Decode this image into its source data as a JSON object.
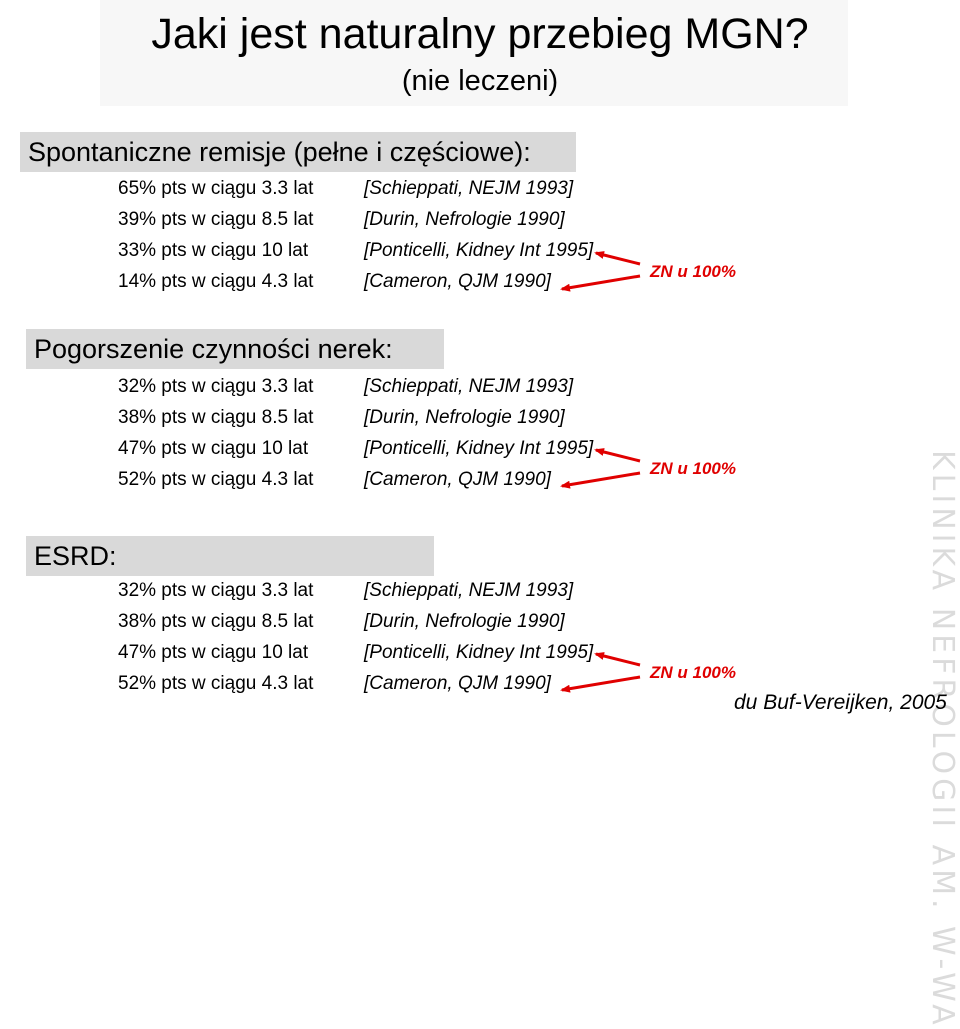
{
  "title": "Jaki jest naturalny przebieg MGN?",
  "subtitle": "(nie leczeni)",
  "sections": [
    {
      "heading": "Spontaniczne remisje (pełne i częściowe):",
      "rows": [
        {
          "pts": "65% pts w ciągu 3.3 lat",
          "ref": "[Schieppati, NEJM 1993]"
        },
        {
          "pts": "39% pts w ciągu 8.5 lat",
          "ref": "[Durin, Nefrologie 1990]"
        },
        {
          "pts": "33% pts w ciągu 10 lat",
          "ref": "[Ponticelli, Kidney Int 1995]"
        },
        {
          "pts": "14% pts w ciągu 4.3 lat",
          "ref": "[Cameron, QJM 1990]"
        }
      ],
      "note": "ZN u 100%"
    },
    {
      "heading": "Pogorszenie czynności nerek:",
      "rows": [
        {
          "pts": "32% pts w ciągu 3.3 lat",
          "ref": "[Schieppati, NEJM 1993]"
        },
        {
          "pts": "38% pts w ciągu 8.5 lat",
          "ref": "[Durin, Nefrologie 1990]"
        },
        {
          "pts": "47% pts w ciągu 10 lat",
          "ref": "[Ponticelli, Kidney Int 1995]"
        },
        {
          "pts": "52% pts w ciągu 4.3 lat",
          "ref": "[Cameron, QJM 1990]"
        }
      ],
      "note": "ZN u 100%"
    },
    {
      "heading": "ESRD:",
      "rows": [
        {
          "pts": "32% pts w ciągu 3.3 lat",
          "ref": "[Schieppati, NEJM 1993]"
        },
        {
          "pts": "38% pts w ciągu 8.5 lat",
          "ref": "[Durin, Nefrologie 1990]"
        },
        {
          "pts": "47% pts w ciągu 10 lat",
          "ref": "[Ponticelli, Kidney Int 1995]"
        },
        {
          "pts": "52% pts w ciągu 4.3 lat",
          "ref": "[Cameron, QJM 1990]"
        }
      ],
      "note": "ZN u 100%"
    }
  ],
  "credit": "du Buf-Vereijken, 2005",
  "watermark": "KLINIKA NEFROLOGII AM. W-WA",
  "colors": {
    "arrow": "#e00000",
    "header_bg": "#d9d9d9"
  }
}
